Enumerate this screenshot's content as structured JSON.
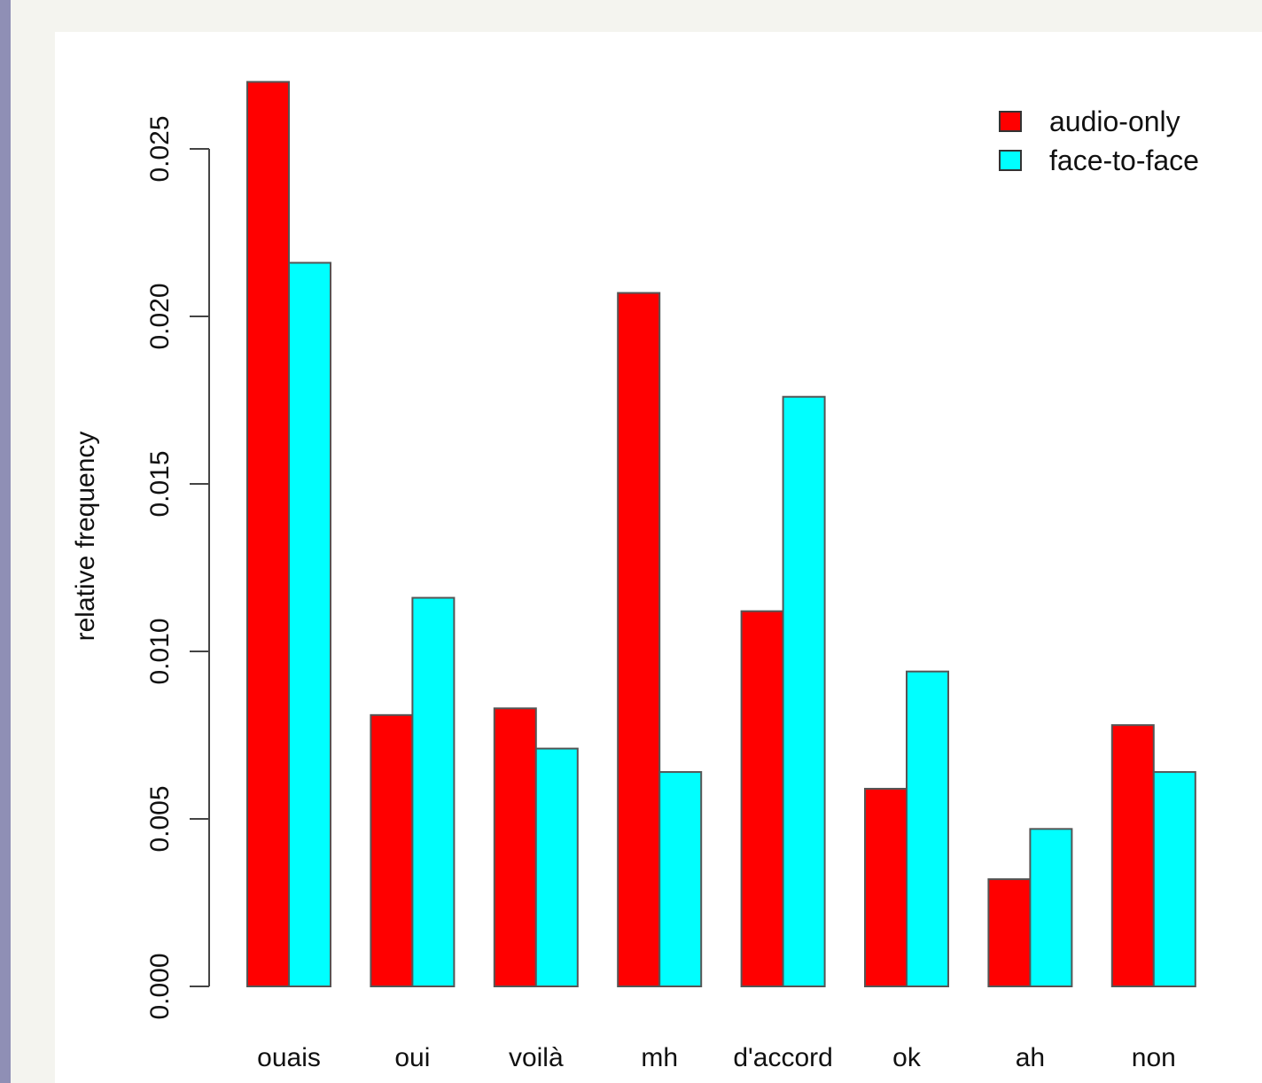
{
  "chart_data": {
    "type": "bar",
    "title": "",
    "xlabel": "",
    "ylabel": "relative frequency",
    "categories": [
      "ouais",
      "oui",
      "voilà",
      "mh",
      "d'accord",
      "ok",
      "ah",
      "non"
    ],
    "series": [
      {
        "name": "audio-only",
        "color": "#ff0000",
        "values": [
          0.027,
          0.0081,
          0.0083,
          0.0207,
          0.0112,
          0.0059,
          0.0032,
          0.0078
        ]
      },
      {
        "name": "face-to-face",
        "color": "#00ffff",
        "values": [
          0.0216,
          0.0116,
          0.0071,
          0.0064,
          0.0176,
          0.0094,
          0.0047,
          0.0064
        ]
      }
    ],
    "ylim": [
      0,
      0.025
    ],
    "yticks": [
      "0.000",
      "0.005",
      "0.010",
      "0.015",
      "0.020",
      "0.025"
    ],
    "grid": false,
    "legend": "top-right"
  }
}
